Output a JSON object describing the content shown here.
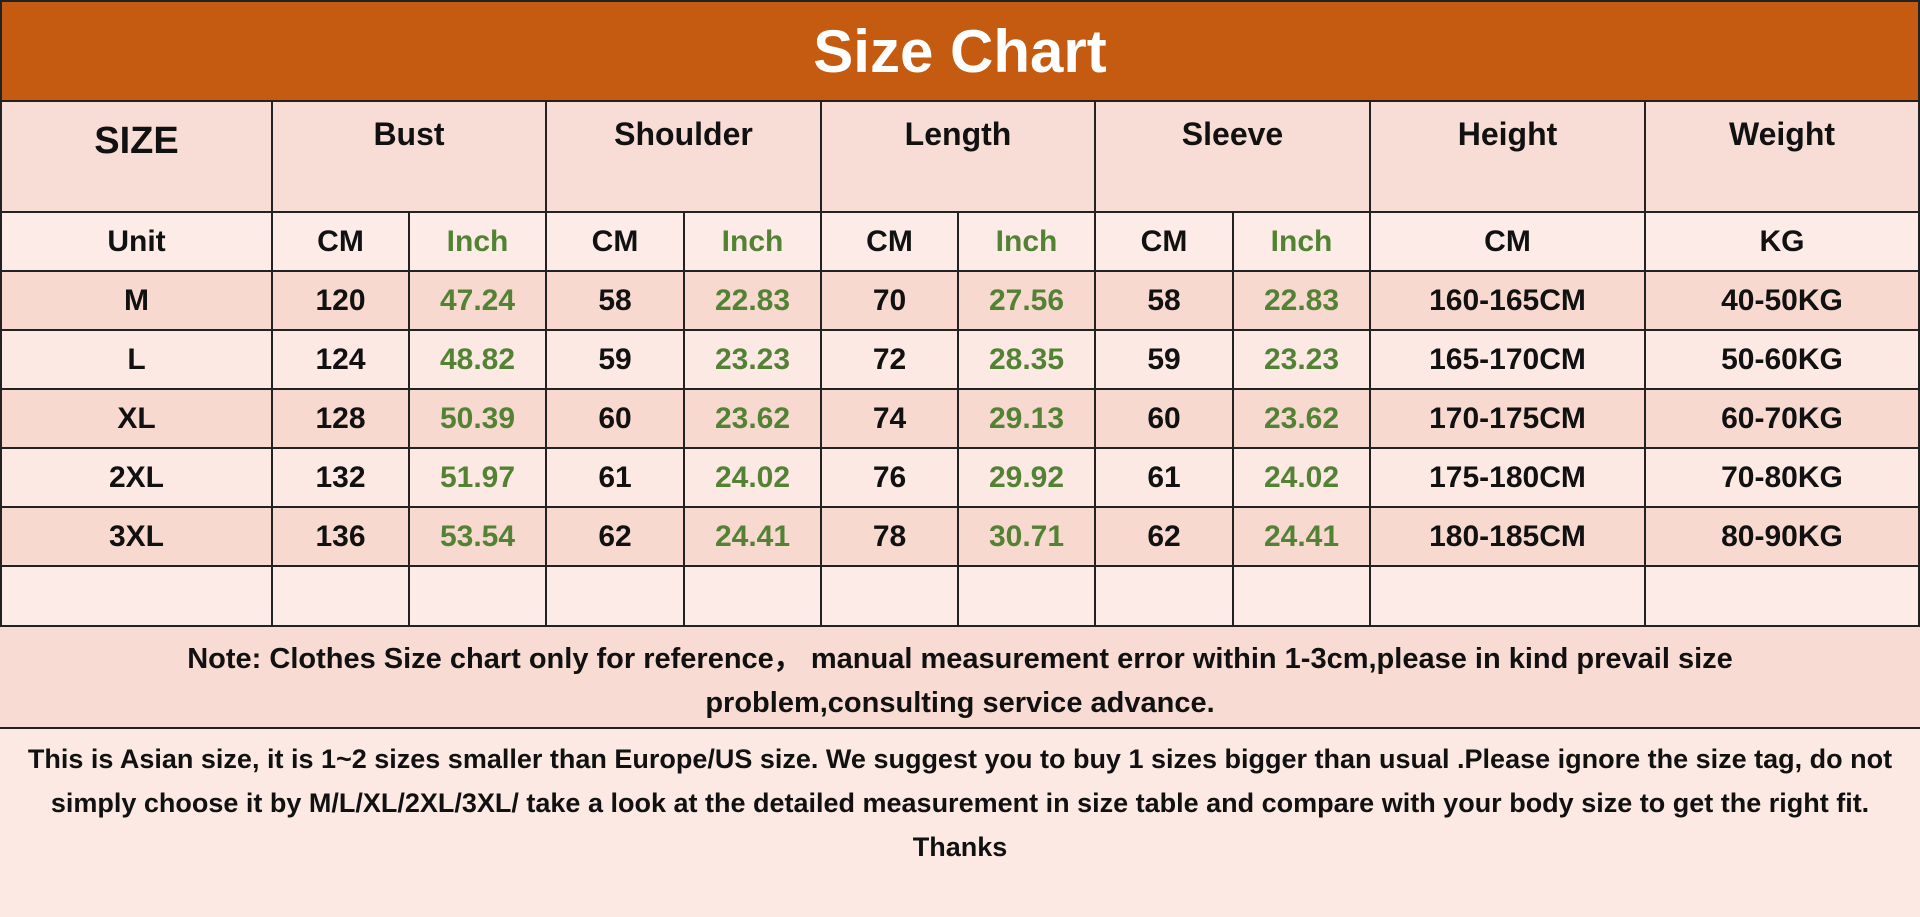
{
  "title": "Size Chart",
  "table": {
    "header": [
      "SIZE",
      "Bust",
      "Shoulder",
      "Length",
      "Sleeve",
      "Height",
      "Weight"
    ],
    "units": [
      "Unit",
      "CM",
      "Inch",
      "CM",
      "Inch",
      "CM",
      "Inch",
      "CM",
      "Inch",
      "CM",
      "KG"
    ],
    "rows": [
      [
        "M",
        "120",
        "47.24",
        "58",
        "22.83",
        "70",
        "27.56",
        "58",
        "22.83",
        "160-165CM",
        "40-50KG"
      ],
      [
        "L",
        "124",
        "48.82",
        "59",
        "23.23",
        "72",
        "28.35",
        "59",
        "23.23",
        "165-170CM",
        "50-60KG"
      ],
      [
        "XL",
        "128",
        "50.39",
        "60",
        "23.62",
        "74",
        "29.13",
        "60",
        "23.62",
        "170-175CM",
        "60-70KG"
      ],
      [
        "2XL",
        "132",
        "51.97",
        "61",
        "24.02",
        "76",
        "29.92",
        "61",
        "24.02",
        "175-180CM",
        "70-80KG"
      ],
      [
        "3XL",
        "136",
        "53.54",
        "62",
        "24.41",
        "78",
        "30.71",
        "62",
        "24.41",
        "180-185CM",
        "80-90KG"
      ]
    ]
  },
  "note": "Note: Clothes Size chart only for reference，  manual measurement error within 1-3cm,please in kind prevail size problem,consulting service advance.",
  "notice": [
    "This is Asian size, it is 1~2 sizes smaller than Europe/US size. We suggest you to buy 1 sizes bigger than usual .Please ignore the size tag, do not simply choose it by M/L/XL/2XL/3XL/ take a look at the detailed measurement in size table and compare with your body size to get the right fit.",
    "Thanks"
  ]
}
